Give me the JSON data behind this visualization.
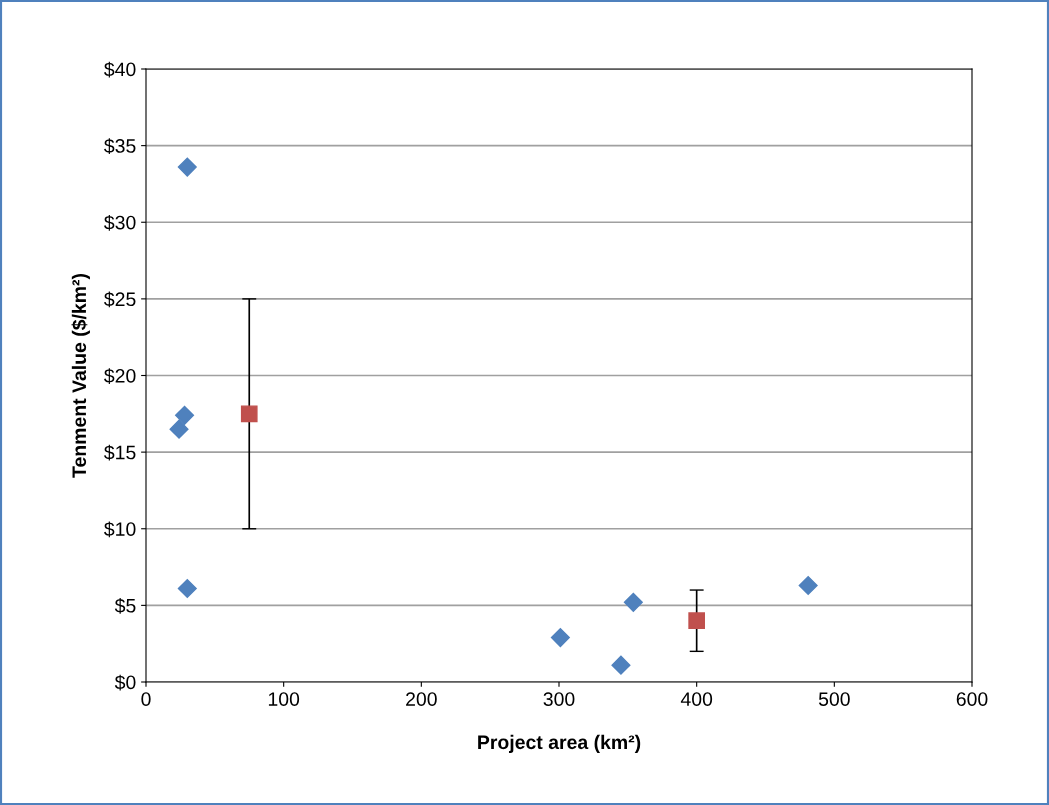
{
  "chart_data": {
    "type": "scatter",
    "xlabel": "Project area (km²)",
    "ylabel": "Tenment Value ($/km²)",
    "series": [
      {
        "color": "#4f81bd",
        "marker": "diamond",
        "x": [
          30,
          28,
          24,
          30,
          301,
          345,
          354,
          481
        ],
        "values": [
          33.6,
          17.4,
          16.5,
          6.1,
          2.9,
          1.1,
          5.2,
          6.3
        ]
      },
      {
        "color": "#c0504d",
        "marker": "square",
        "x": [
          75,
          400
        ],
        "values": [
          17.5,
          4.0
        ],
        "errors": [
          [
            10,
            25
          ],
          [
            2,
            6
          ]
        ]
      }
    ],
    "xlim": [
      0,
      600
    ],
    "xticks": [
      0,
      100,
      200,
      300,
      400,
      500,
      600
    ],
    "ylim": [
      0,
      40
    ],
    "yticks": [
      {
        "value": 0,
        "label": "$0"
      },
      {
        "value": 5,
        "label": "$5"
      },
      {
        "value": 10,
        "label": "$10"
      },
      {
        "value": 15,
        "label": "$15"
      },
      {
        "value": 20,
        "label": "$20"
      },
      {
        "value": 25,
        "label": "$25"
      },
      {
        "value": 30,
        "label": "$30"
      },
      {
        "value": 35,
        "label": "$35"
      },
      {
        "value": 40,
        "label": "$40"
      }
    ],
    "grid": "y",
    "legend": false
  }
}
